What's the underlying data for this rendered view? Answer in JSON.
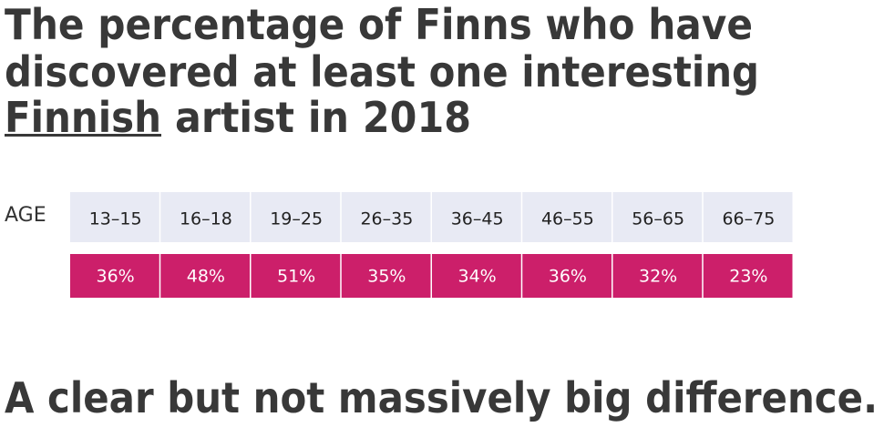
{
  "title": {
    "line1": "The percentage of Finns who have",
    "line2": "discovered at least one interesting",
    "line3_underlined": "Finnish",
    "line3_rest": "artist in 2018"
  },
  "table": {
    "row_label": "AGE",
    "age_groups": [
      "13–15",
      "16–18",
      "19–25",
      "26–35",
      "36–45",
      "46–55",
      "56–65",
      "66–75"
    ],
    "percentages": [
      "36%",
      "48%",
      "51%",
      "35%",
      "34%",
      "36%",
      "32%",
      "23%"
    ]
  },
  "conclusion": "A clear but not massively big difference."
}
